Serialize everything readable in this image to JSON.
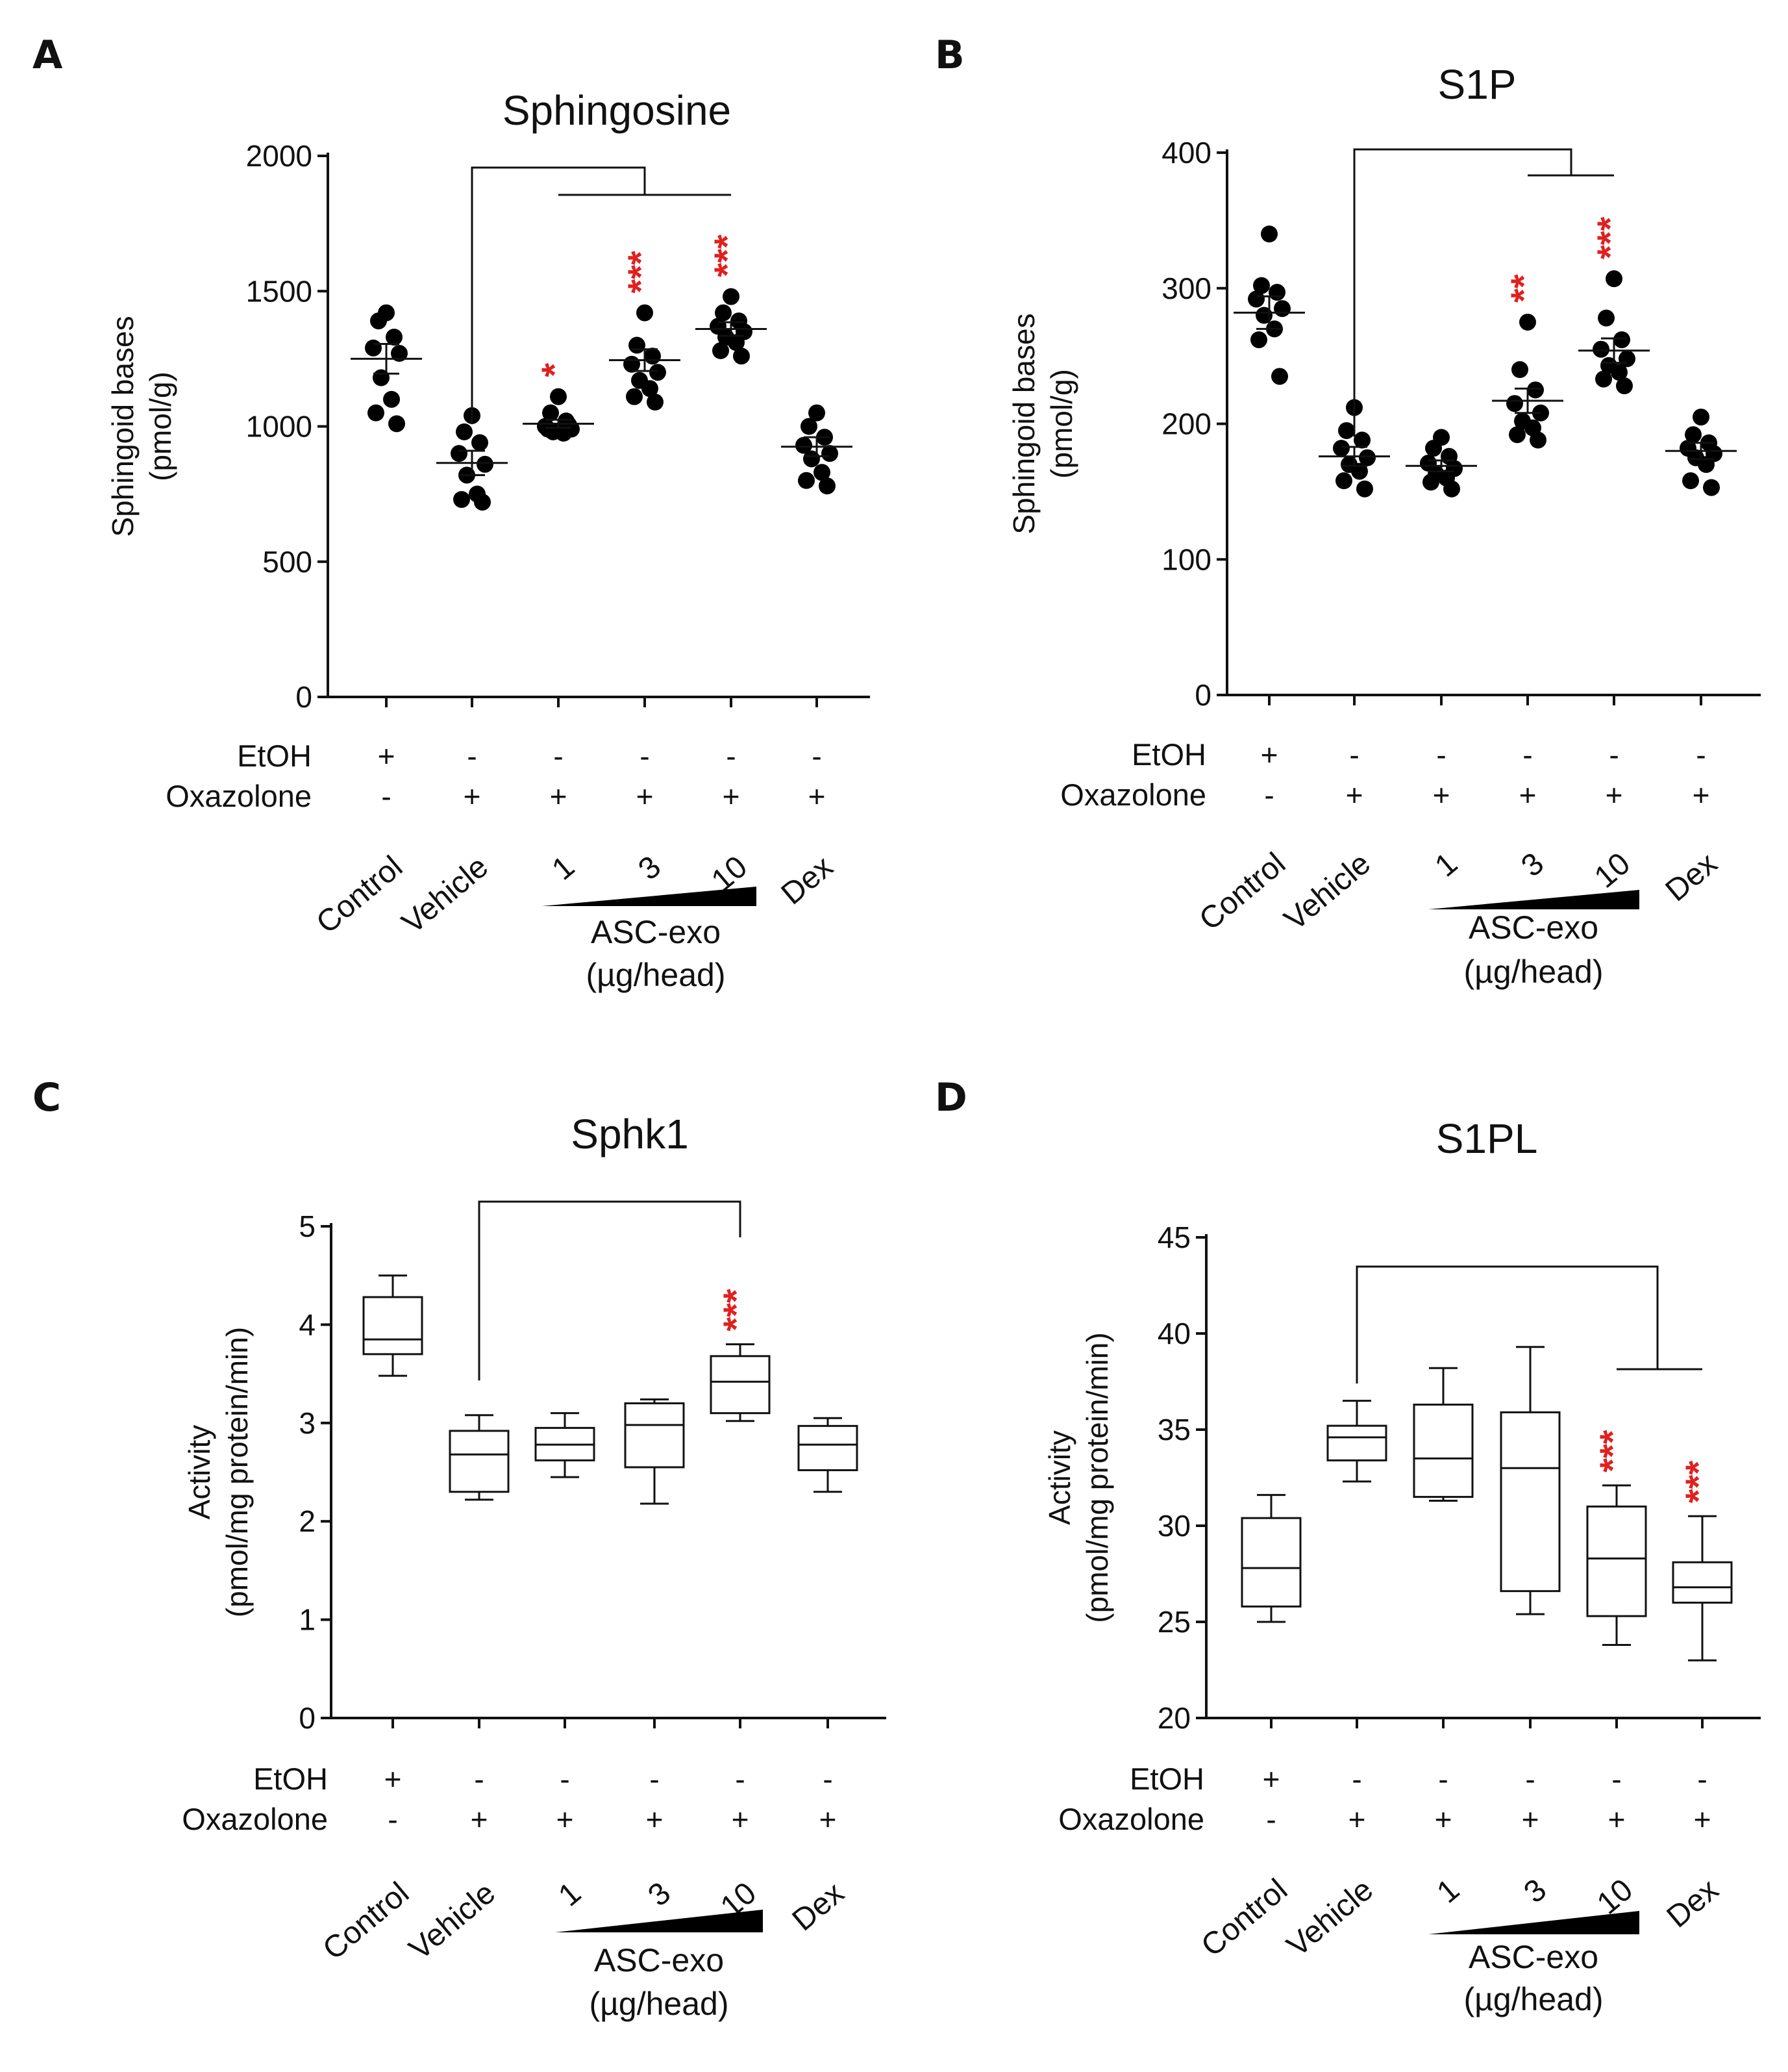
{
  "row_labels": {
    "etoh": "EtOH",
    "oxazolone": "Oxazolone"
  },
  "group_label": {
    "line1": "ASC-exo",
    "line2": "(µg/head)"
  },
  "chart_data": [
    {
      "id": "A",
      "panel": "A",
      "type": "scatter",
      "title": "Sphingosine",
      "ylabel": [
        "Sphingoid bases",
        "(pmol/g)"
      ],
      "ylim": [
        0,
        2000
      ],
      "yticks": [
        0,
        500,
        1000,
        1500,
        2000
      ],
      "categories": [
        "Control",
        "Vehicle",
        "1",
        "3",
        "10",
        "Dex"
      ],
      "etoh": [
        "+",
        "-",
        "-",
        "-",
        "-",
        "-"
      ],
      "oxazolone": [
        "-",
        "+",
        "+",
        "+",
        "+",
        "+"
      ],
      "means": [
        1250,
        865,
        1010,
        1245,
        1360,
        925
      ],
      "sem": [
        55,
        45,
        15,
        40,
        25,
        35
      ],
      "points": [
        [
          1420,
          1390,
          1330,
          1290,
          1270,
          1180,
          1100,
          1050,
          1010
        ],
        [
          1040,
          980,
          940,
          900,
          860,
          820,
          750,
          730,
          720
        ],
        [
          1110,
          1050,
          1020,
          1000,
          990,
          980,
          975,
          990,
          1005
        ],
        [
          1420,
          1300,
          1260,
          1230,
          1200,
          1170,
          1140,
          1110,
          1090
        ],
        [
          1480,
          1420,
          1390,
          1370,
          1350,
          1330,
          1310,
          1280,
          1260
        ],
        [
          1050,
          1000,
          960,
          930,
          900,
          880,
          830,
          800,
          780
        ]
      ],
      "significance": [
        "",
        "",
        "*",
        "***",
        "***",
        ""
      ]
    },
    {
      "id": "B",
      "panel": "B",
      "type": "scatter",
      "title": "S1P",
      "ylabel": [
        "Sphingoid bases",
        "(pmol/g)"
      ],
      "ylim": [
        0,
        400
      ],
      "yticks": [
        0,
        100,
        200,
        300,
        400
      ],
      "categories": [
        "Control",
        "Vehicle",
        "1",
        "3",
        "10",
        "Dex"
      ],
      "etoh": [
        "+",
        "-",
        "-",
        "-",
        "-",
        "-"
      ],
      "oxazolone": [
        "-",
        "+",
        "+",
        "+",
        "+",
        "+"
      ],
      "means": [
        282,
        176,
        169,
        217,
        254,
        180
      ],
      "sem": [
        12,
        7,
        4,
        9,
        9,
        6
      ],
      "points": [
        [
          340,
          302,
          297,
          292,
          285,
          280,
          270,
          262,
          235
        ],
        [
          212,
          195,
          188,
          182,
          175,
          170,
          165,
          158,
          152
        ],
        [
          190,
          182,
          176,
          171,
          167,
          163,
          160,
          157,
          152
        ],
        [
          275,
          240,
          225,
          215,
          208,
          202,
          197,
          192,
          188
        ],
        [
          307,
          278,
          262,
          255,
          248,
          243,
          238,
          233,
          228
        ],
        [
          205,
          192,
          186,
          182,
          178,
          175,
          170,
          158,
          153
        ]
      ],
      "significance": [
        "",
        "",
        "",
        "**",
        "***",
        ""
      ]
    },
    {
      "id": "C",
      "panel": "C",
      "type": "boxplot",
      "title": "Sphk1",
      "ylabel": [
        "Activity",
        "(pmol/mg protein/min)"
      ],
      "ylim": [
        0,
        5
      ],
      "yticks": [
        0,
        1,
        2,
        3,
        4,
        5
      ],
      "categories": [
        "Control",
        "Vehicle",
        "1",
        "3",
        "10",
        "Dex"
      ],
      "etoh": [
        "+",
        "-",
        "-",
        "-",
        "-",
        "-"
      ],
      "oxazolone": [
        "-",
        "+",
        "+",
        "+",
        "+",
        "+"
      ],
      "boxes": [
        {
          "min": 3.48,
          "q1": 3.7,
          "median": 3.85,
          "q3": 4.28,
          "max": 4.5
        },
        {
          "min": 2.22,
          "q1": 2.3,
          "median": 2.68,
          "q3": 2.92,
          "max": 3.08
        },
        {
          "min": 2.45,
          "q1": 2.62,
          "median": 2.78,
          "q3": 2.95,
          "max": 3.1
        },
        {
          "min": 2.18,
          "q1": 2.55,
          "median": 2.98,
          "q3": 3.2,
          "max": 3.24
        },
        {
          "min": 3.02,
          "q1": 3.1,
          "median": 3.42,
          "q3": 3.68,
          "max": 3.8
        },
        {
          "min": 2.3,
          "q1": 2.52,
          "median": 2.78,
          "q3": 2.97,
          "max": 3.05
        }
      ],
      "significance": [
        "",
        "",
        "",
        "",
        "***",
        ""
      ]
    },
    {
      "id": "D",
      "panel": "D",
      "type": "boxplot",
      "title": "S1PL",
      "ylabel": [
        "Activity",
        "(pmol/mg protein/min)"
      ],
      "ylim": [
        20,
        45
      ],
      "yticks": [
        20,
        25,
        30,
        35,
        40,
        45
      ],
      "categories": [
        "Control",
        "Vehicle",
        "1",
        "3",
        "10",
        "Dex"
      ],
      "etoh": [
        "+",
        "-",
        "-",
        "-",
        "-",
        "-"
      ],
      "oxazolone": [
        "-",
        "+",
        "+",
        "+",
        "+",
        "+"
      ],
      "boxes": [
        {
          "min": 25.0,
          "q1": 25.8,
          "median": 27.8,
          "q3": 30.4,
          "max": 31.6
        },
        {
          "min": 32.3,
          "q1": 33.4,
          "median": 34.6,
          "q3": 35.2,
          "max": 36.5
        },
        {
          "min": 31.3,
          "q1": 31.5,
          "median": 33.5,
          "q3": 36.3,
          "max": 38.2
        },
        {
          "min": 25.4,
          "q1": 26.6,
          "median": 33.0,
          "q3": 35.9,
          "max": 39.3
        },
        {
          "min": 23.8,
          "q1": 25.3,
          "median": 28.3,
          "q3": 31.0,
          "max": 32.1
        },
        {
          "min": 23.0,
          "q1": 26.0,
          "median": 26.8,
          "q3": 28.1,
          "max": 30.5
        }
      ],
      "significance": [
        "",
        "",
        "",
        "",
        "***",
        "***"
      ]
    }
  ]
}
